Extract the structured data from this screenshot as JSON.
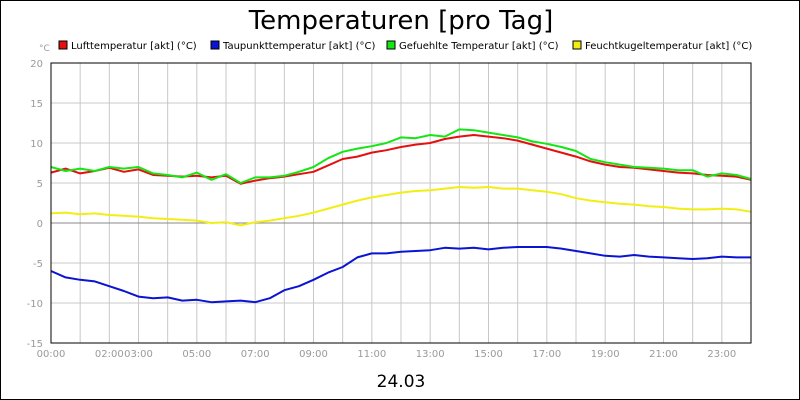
{
  "chart_data": {
    "type": "line",
    "title": "Temperaturen [pro Tag]",
    "yunit": "°C",
    "xlabel": "24.03",
    "ylim": [
      -15,
      20
    ],
    "yticks": [
      20,
      15,
      10,
      5,
      0,
      -5,
      -10,
      -15
    ],
    "xlim": [
      0,
      24
    ],
    "xticks": [
      {
        "t": 0,
        "label": "00:00"
      },
      {
        "t": 2,
        "label": "02:00"
      },
      {
        "t": 3,
        "label": "03:00"
      },
      {
        "t": 5,
        "label": "05:00"
      },
      {
        "t": 7,
        "label": "07:00"
      },
      {
        "t": 9,
        "label": "09:00"
      },
      {
        "t": 11,
        "label": "11:00"
      },
      {
        "t": 13,
        "label": "13:00"
      },
      {
        "t": 15,
        "label": "15:00"
      },
      {
        "t": 17,
        "label": "17:00"
      },
      {
        "t": 19,
        "label": "19:00"
      },
      {
        "t": 21,
        "label": "21:00"
      },
      {
        "t": 23,
        "label": "23:00"
      }
    ],
    "grid": true,
    "legend_position": "top",
    "series": [
      {
        "name": "Lufttemperatur [akt] (°C)",
        "color": "#e41010",
        "x": [
          0,
          0.5,
          1,
          1.5,
          2,
          2.5,
          3,
          3.5,
          4,
          4.5,
          5,
          5.5,
          6,
          6.5,
          7,
          7.5,
          8,
          8.5,
          9,
          9.5,
          10,
          10.5,
          11,
          11.5,
          12,
          12.5,
          13,
          13.5,
          14,
          14.5,
          15,
          15.5,
          16,
          16.5,
          17,
          17.5,
          18,
          18.5,
          19,
          19.5,
          20,
          20.5,
          21,
          21.5,
          22,
          22.5,
          23,
          23.5,
          24
        ],
        "y": [
          6.3,
          6.8,
          6.2,
          6.5,
          6.9,
          6.4,
          6.7,
          6.0,
          5.9,
          5.8,
          5.9,
          5.7,
          5.9,
          4.9,
          5.3,
          5.6,
          5.8,
          6.1,
          6.4,
          7.2,
          8.0,
          8.3,
          8.8,
          9.1,
          9.5,
          9.8,
          10.0,
          10.5,
          10.8,
          11.0,
          10.8,
          10.6,
          10.3,
          9.8,
          9.3,
          8.8,
          8.3,
          7.7,
          7.3,
          7.0,
          6.9,
          6.7,
          6.5,
          6.3,
          6.2,
          6.0,
          5.9,
          5.8,
          5.4
        ]
      },
      {
        "name": "Taupunkttemperatur [akt] (°C)",
        "color": "#0a14d2",
        "x": [
          0,
          0.5,
          1,
          1.5,
          2,
          2.5,
          3,
          3.5,
          4,
          4.5,
          5,
          5.5,
          6,
          6.5,
          7,
          7.5,
          8,
          8.5,
          9,
          9.5,
          10,
          10.5,
          11,
          11.5,
          12,
          12.5,
          13,
          13.5,
          14,
          14.5,
          15,
          15.5,
          16,
          16.5,
          17,
          17.5,
          18,
          18.5,
          19,
          19.5,
          20,
          20.5,
          21,
          21.5,
          22,
          22.5,
          23,
          23.5,
          24
        ],
        "y": [
          -6.0,
          -6.8,
          -7.1,
          -7.3,
          -7.9,
          -8.5,
          -9.2,
          -9.4,
          -9.3,
          -9.7,
          -9.6,
          -9.9,
          -9.8,
          -9.7,
          -9.9,
          -9.4,
          -8.4,
          -7.9,
          -7.1,
          -6.2,
          -5.5,
          -4.3,
          -3.8,
          -3.8,
          -3.6,
          -3.5,
          -3.4,
          -3.1,
          -3.2,
          -3.1,
          -3.3,
          -3.1,
          -3.0,
          -3.0,
          -3.0,
          -3.2,
          -3.5,
          -3.8,
          -4.1,
          -4.2,
          -4.0,
          -4.2,
          -4.3,
          -4.4,
          -4.5,
          -4.4,
          -4.2,
          -4.3,
          -4.3
        ]
      },
      {
        "name": "Gefuehlte Temperatur [akt] (°C)",
        "color": "#14e614",
        "x": [
          0,
          0.5,
          1,
          1.5,
          2,
          2.5,
          3,
          3.5,
          4,
          4.5,
          5,
          5.5,
          6,
          6.5,
          7,
          7.5,
          8,
          8.5,
          9,
          9.5,
          10,
          10.5,
          11,
          11.5,
          12,
          12.5,
          13,
          13.5,
          14,
          14.5,
          15,
          15.5,
          16,
          16.5,
          17,
          17.5,
          18,
          18.5,
          19,
          19.5,
          20,
          20.5,
          21,
          21.5,
          22,
          22.5,
          23,
          23.5,
          24
        ],
        "y": [
          7.0,
          6.5,
          6.8,
          6.5,
          7.0,
          6.8,
          7.0,
          6.2,
          6.0,
          5.7,
          6.3,
          5.4,
          6.1,
          5.0,
          5.7,
          5.7,
          5.9,
          6.4,
          7.0,
          8.1,
          8.9,
          9.3,
          9.6,
          10.0,
          10.7,
          10.6,
          11.0,
          10.8,
          11.7,
          11.6,
          11.3,
          11.0,
          10.7,
          10.2,
          9.9,
          9.5,
          9.0,
          8.0,
          7.6,
          7.3,
          7.0,
          6.9,
          6.8,
          6.6,
          6.6,
          5.8,
          6.2,
          6.0,
          5.5
        ]
      },
      {
        "name": "Feuchtkugeltemperatur [akt] (°C)",
        "color": "#f2ee14",
        "x": [
          0,
          0.5,
          1,
          1.5,
          2,
          2.5,
          3,
          3.5,
          4,
          4.5,
          5,
          5.5,
          6,
          6.5,
          7,
          7.5,
          8,
          8.5,
          9,
          9.5,
          10,
          10.5,
          11,
          11.5,
          12,
          12.5,
          13,
          13.5,
          14,
          14.5,
          15,
          15.5,
          16,
          16.5,
          17,
          17.5,
          18,
          18.5,
          19,
          19.5,
          20,
          20.5,
          21,
          21.5,
          22,
          22.5,
          23,
          23.5,
          24
        ],
        "y": [
          1.2,
          1.3,
          1.1,
          1.2,
          1.0,
          0.9,
          0.8,
          0.6,
          0.5,
          0.4,
          0.3,
          0.0,
          0.1,
          -0.3,
          0.1,
          0.3,
          0.6,
          0.9,
          1.3,
          1.8,
          2.3,
          2.8,
          3.2,
          3.5,
          3.8,
          4.0,
          4.1,
          4.3,
          4.5,
          4.4,
          4.5,
          4.3,
          4.3,
          4.1,
          3.9,
          3.6,
          3.1,
          2.8,
          2.6,
          2.4,
          2.3,
          2.1,
          2.0,
          1.8,
          1.7,
          1.7,
          1.8,
          1.7,
          1.4
        ]
      }
    ]
  }
}
